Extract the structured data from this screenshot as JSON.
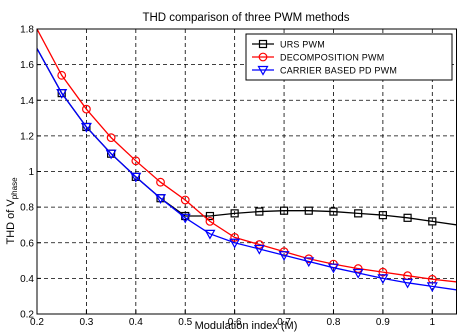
{
  "chart_data": {
    "type": "line",
    "title": "THD comparison of three PWM methods",
    "xlabel": "Modulation index (M)",
    "ylabel": "THD of V",
    "ylabel_subscript": "phase",
    "xlim": [
      0.2,
      1.05
    ],
    "ylim": [
      0.2,
      1.8
    ],
    "xticks": [
      "0.2",
      "0.3",
      "0.4",
      "0.5",
      "0.6",
      "0.7",
      "0.8",
      "0.9",
      "1"
    ],
    "yticks": [
      "0.2",
      "0.4",
      "0.6",
      "0.8",
      "1",
      "1.2",
      "1.4",
      "1.6",
      "1.8"
    ],
    "grid": true,
    "grid_style": "dashed",
    "legend_position": "top-right",
    "series": [
      {
        "name": "URS PWM",
        "color": "#000000",
        "marker": "square",
        "x": [
          0.2,
          0.25,
          0.3,
          0.35,
          0.4,
          0.45,
          0.5,
          0.55,
          0.6,
          0.65,
          0.7,
          0.75,
          0.8,
          0.85,
          0.9,
          0.95,
          1.0,
          1.05
        ],
        "y": [
          1.69,
          1.44,
          1.25,
          1.1,
          0.97,
          0.85,
          0.75,
          0.75,
          0.765,
          0.775,
          0.78,
          0.78,
          0.775,
          0.765,
          0.755,
          0.74,
          0.72,
          0.7
        ],
        "marker_x": [
          0.25,
          0.3,
          0.35,
          0.4,
          0.45,
          0.5,
          0.55,
          0.6,
          0.65,
          0.7,
          0.75,
          0.8,
          0.85,
          0.9,
          0.95,
          1.0
        ]
      },
      {
        "name": "DECOMPOSITION PWM",
        "color": "#ff0000",
        "marker": "circle",
        "x": [
          0.2,
          0.25,
          0.3,
          0.35,
          0.4,
          0.45,
          0.5,
          0.55,
          0.6,
          0.65,
          0.7,
          0.75,
          0.8,
          0.85,
          0.9,
          0.95,
          1.0,
          1.05
        ],
        "y": [
          1.8,
          1.54,
          1.35,
          1.19,
          1.06,
          0.94,
          0.84,
          0.72,
          0.63,
          0.59,
          0.55,
          0.51,
          0.48,
          0.455,
          0.435,
          0.415,
          0.395,
          0.38
        ],
        "marker_x": [
          0.25,
          0.3,
          0.35,
          0.4,
          0.45,
          0.5,
          0.55,
          0.6,
          0.65,
          0.7,
          0.75,
          0.8,
          0.85,
          0.9,
          0.95,
          1.0
        ]
      },
      {
        "name": "CARRIER BASED PD PWM",
        "color": "#0000ff",
        "marker": "triangle-down",
        "x": [
          0.2,
          0.25,
          0.3,
          0.35,
          0.4,
          0.45,
          0.5,
          0.55,
          0.6,
          0.65,
          0.7,
          0.75,
          0.8,
          0.85,
          0.9,
          0.95,
          1.0,
          1.05
        ],
        "y": [
          1.69,
          1.44,
          1.25,
          1.1,
          0.97,
          0.85,
          0.74,
          0.65,
          0.6,
          0.565,
          0.53,
          0.495,
          0.46,
          0.43,
          0.4,
          0.375,
          0.355,
          0.335
        ],
        "marker_x": [
          0.25,
          0.3,
          0.35,
          0.4,
          0.45,
          0.5,
          0.55,
          0.6,
          0.65,
          0.7,
          0.75,
          0.8,
          0.85,
          0.9,
          0.95,
          1.0
        ]
      }
    ]
  }
}
